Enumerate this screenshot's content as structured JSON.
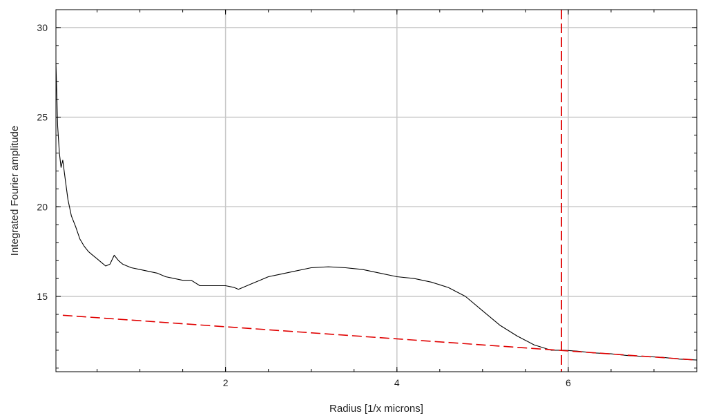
{
  "chart_data": {
    "type": "line",
    "xlabel": "Radius [1/x microns]",
    "ylabel": "Integrated Fourier amplitude",
    "xlim": [
      0.02,
      7.5
    ],
    "ylim": [
      10.8,
      31.0
    ],
    "x_ticks": [
      2,
      4,
      6
    ],
    "x_tick_labels": [
      "2",
      "4",
      "6"
    ],
    "y_ticks": [
      15,
      20,
      25,
      30
    ],
    "y_tick_labels": [
      "15",
      "20",
      "25",
      "30"
    ],
    "grid": true,
    "legend": "none",
    "series": [
      {
        "style": "solid",
        "color": "#000000",
        "x": [
          0.02,
          0.04,
          0.06,
          0.08,
          0.1,
          0.13,
          0.16,
          0.2,
          0.25,
          0.3,
          0.35,
          0.4,
          0.45,
          0.5,
          0.55,
          0.6,
          0.65,
          0.7,
          0.75,
          0.8,
          0.85,
          0.9,
          1.0,
          1.1,
          1.2,
          1.3,
          1.4,
          1.5,
          1.6,
          1.7,
          1.8,
          1.9,
          2.0,
          2.1,
          2.15,
          2.2,
          2.3,
          2.4,
          2.5,
          2.6,
          2.8,
          3.0,
          3.2,
          3.4,
          3.6,
          3.8,
          4.0,
          4.2,
          4.4,
          4.6,
          4.8,
          5.0,
          5.2,
          5.4,
          5.6,
          5.8,
          5.95,
          6.1,
          6.3,
          6.5,
          6.7,
          6.9,
          7.1,
          7.3,
          7.5
        ],
        "y": [
          28.0,
          24.5,
          23.0,
          22.2,
          22.6,
          21.5,
          20.4,
          19.5,
          18.9,
          18.2,
          17.8,
          17.5,
          17.3,
          17.1,
          16.9,
          16.7,
          16.8,
          17.3,
          17.0,
          16.8,
          16.7,
          16.6,
          16.5,
          16.4,
          16.3,
          16.1,
          16.0,
          15.9,
          15.9,
          15.6,
          15.6,
          15.6,
          15.6,
          15.5,
          15.4,
          15.5,
          15.7,
          15.9,
          16.1,
          16.2,
          16.4,
          16.6,
          16.65,
          16.6,
          16.5,
          16.3,
          16.1,
          16.0,
          15.8,
          15.5,
          15.0,
          14.2,
          13.4,
          12.8,
          12.3,
          12.0,
          12.0,
          11.95,
          11.85,
          11.8,
          11.7,
          11.65,
          11.6,
          11.5,
          11.45
        ]
      },
      {
        "style": "dashed",
        "color": "#e00000",
        "x": [
          0.1,
          7.5
        ],
        "y": [
          13.95,
          11.45
        ]
      }
    ],
    "vertical_line": {
      "x": 5.92,
      "style": "dashed",
      "color": "#e00000"
    }
  }
}
